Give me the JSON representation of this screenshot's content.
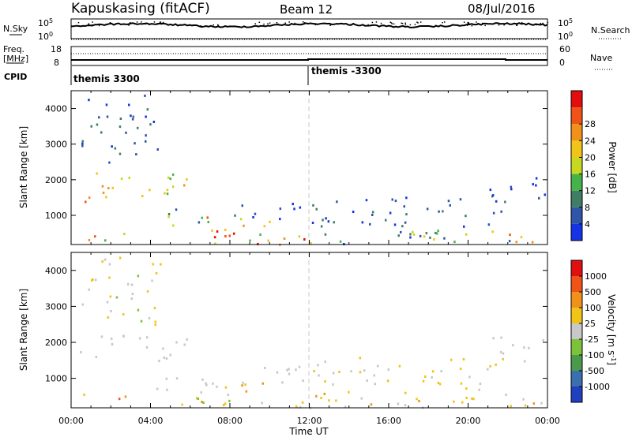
{
  "header": {
    "station": "Kapuskasing (fitACF)",
    "beam": "Beam 12",
    "date": "08/Jul/2016"
  },
  "top_panels": {
    "nsky_label": "N.Sky",
    "nsky_top_tick": "10^5",
    "nsky_bottom_tick": "10^0",
    "nsearch_label": "N.Search",
    "nsearch_top_tick": "10^5",
    "nsearch_bottom_tick": "10^0",
    "freq_label": "Freq.",
    "freq_units": "[MHz]",
    "freq_top_tick": "18",
    "freq_bottom_tick": "8",
    "nave_label": "Nave",
    "nave_top_tick": "60",
    "nave_bottom_tick": "0",
    "cpid_label": "CPID",
    "cpid_1": "themis 3300",
    "cpid_2": "themis -3300"
  },
  "chart_data": [
    {
      "type": "heatmap",
      "name": "power",
      "ylabel": "Slant Range [km]",
      "yticks": [
        "1000",
        "2000",
        "3000",
        "4000"
      ],
      "ylim": [
        180,
        4500
      ],
      "xlim": [
        0,
        24
      ],
      "colorbar_label": "Power [dB]",
      "colorbar_ticks": [
        "4",
        "8",
        "12",
        "16",
        "20",
        "24",
        "28"
      ],
      "colors": [
        "#1434e6",
        "#2f55a8",
        "#3f7d66",
        "#46b34a",
        "#c7d820",
        "#f1c418",
        "#f19119",
        "#f05318",
        "#e30d0d"
      ],
      "regions": [
        {
          "t": [
            0.3,
            5.8
          ],
          "r": [
            1500,
            2300
          ],
          "level": [
            3,
            6
          ]
        },
        {
          "t": [
            0.3,
            1.8
          ],
          "r": [
            1350,
            1800
          ],
          "level": [
            5,
            8
          ]
        },
        {
          "t": [
            0.5,
            4.5
          ],
          "r": [
            2500,
            4400
          ],
          "level": [
            0,
            2
          ]
        },
        {
          "t": [
            0.5,
            3.5
          ],
          "r": [
            300,
            600
          ],
          "level": [
            3,
            7
          ]
        },
        {
          "t": [
            4.0,
            7.5
          ],
          "r": [
            700,
            1200
          ],
          "level": [
            1,
            4
          ]
        },
        {
          "t": [
            5.5,
            10.0
          ],
          "r": [
            300,
            1000
          ],
          "level": [
            3,
            8
          ]
        },
        {
          "t": [
            6.0,
            12.0
          ],
          "r": [
            200,
            500
          ],
          "level": [
            3,
            8
          ]
        },
        {
          "t": [
            8.0,
            13.0
          ],
          "r": [
            900,
            1400
          ],
          "level": [
            0,
            2
          ]
        },
        {
          "t": [
            12.0,
            18.5
          ],
          "r": [
            200,
            700
          ],
          "level": [
            0,
            4
          ]
        },
        {
          "t": [
            12.0,
            22.0
          ],
          "r": [
            700,
            1600
          ],
          "level": [
            0,
            2
          ]
        },
        {
          "t": [
            17.0,
            23.0
          ],
          "r": [
            200,
            600
          ],
          "level": [
            1,
            6
          ]
        },
        {
          "t": [
            22.0,
            24.0
          ],
          "r": [
            200,
            500
          ],
          "level": [
            5,
            8
          ]
        },
        {
          "t": [
            21.0,
            24.0
          ],
          "r": [
            1500,
            2200
          ],
          "level": [
            0,
            1
          ]
        }
      ]
    },
    {
      "type": "heatmap",
      "name": "velocity",
      "ylabel": "Slant Range [km]",
      "yticks": [
        "1000",
        "2000",
        "3000",
        "4000"
      ],
      "ylim": [
        180,
        4500
      ],
      "xlim": [
        0,
        24
      ],
      "xlabel": "Time UT",
      "xticks": [
        "00:00",
        "04:00",
        "08:00",
        "12:00",
        "16:00",
        "20:00",
        "00:00"
      ],
      "colorbar_label": "Velocity [m s",
      "colorbar_units_sup": "-1",
      "colorbar_units_end": "]",
      "colorbar_ticks": [
        "1000",
        "500",
        "100",
        "25",
        "-25",
        "-100",
        "-500",
        "-1000"
      ],
      "colors": [
        "#2040c0",
        "#3a6fb0",
        "#4b9a4b",
        "#7cc23a",
        "#c8c8c8",
        "#f1c418",
        "#f19119",
        "#f05318",
        "#e01010"
      ],
      "regions": [
        {
          "t": [
            0.3,
            5.8
          ],
          "r": [
            1500,
            2300
          ],
          "level": [
            4,
            4
          ]
        },
        {
          "t": [
            0.5,
            4.5
          ],
          "r": [
            2500,
            4400
          ],
          "level": [
            3,
            5
          ]
        },
        {
          "t": [
            0.3,
            3.0
          ],
          "r": [
            300,
            600
          ],
          "level": [
            5,
            7
          ]
        },
        {
          "t": [
            4.0,
            7.5
          ],
          "r": [
            700,
            1200
          ],
          "level": [
            4,
            4
          ]
        },
        {
          "t": [
            5.5,
            10.0
          ],
          "r": [
            300,
            1000
          ],
          "level": [
            4,
            6
          ]
        },
        {
          "t": [
            6.0,
            12.0
          ],
          "r": [
            200,
            500
          ],
          "level": [
            3,
            6
          ]
        },
        {
          "t": [
            8.0,
            13.0
          ],
          "r": [
            900,
            1400
          ],
          "level": [
            4,
            4
          ]
        },
        {
          "t": [
            12.0,
            18.5
          ],
          "r": [
            200,
            700
          ],
          "level": [
            4,
            6
          ]
        },
        {
          "t": [
            12.0,
            22.0
          ],
          "r": [
            700,
            1600
          ],
          "level": [
            4,
            5
          ]
        },
        {
          "t": [
            17.0,
            23.0
          ],
          "r": [
            200,
            600
          ],
          "level": [
            4,
            5
          ]
        },
        {
          "t": [
            22.0,
            24.0
          ],
          "r": [
            200,
            500
          ],
          "level": [
            4,
            7
          ]
        },
        {
          "t": [
            21.0,
            24.0
          ],
          "r": [
            1500,
            2200
          ],
          "level": [
            4,
            4
          ]
        }
      ]
    }
  ]
}
